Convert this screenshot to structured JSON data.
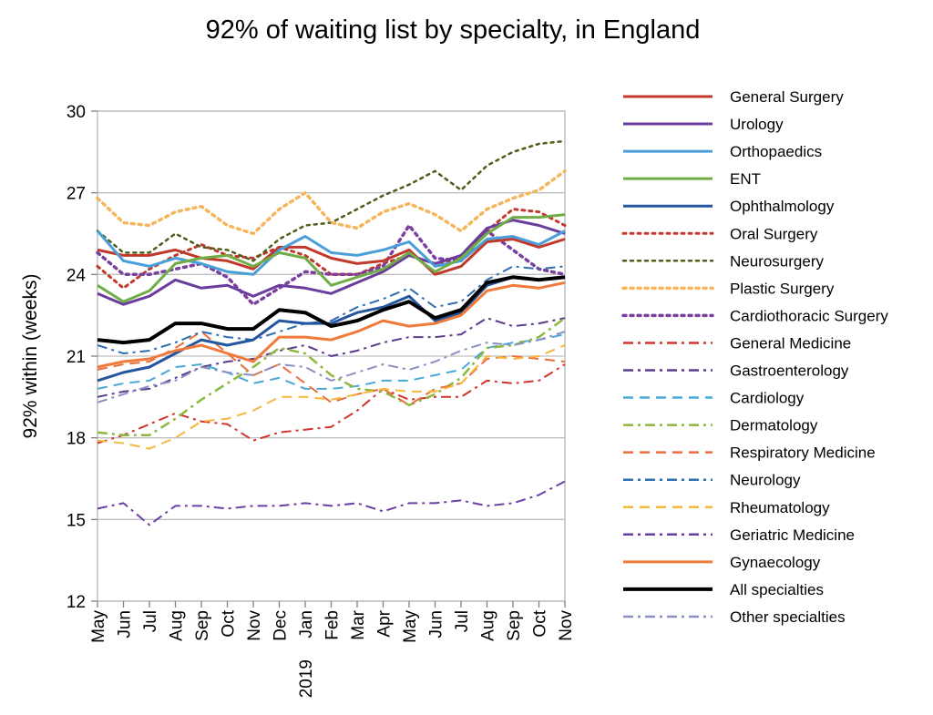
{
  "chart_data": {
    "type": "line",
    "title": "92% of waiting list by specialty, in England",
    "ylabel": "92% within (weeks)",
    "xlabel": "",
    "ylim": [
      12,
      30
    ],
    "yticks": [
      12,
      15,
      18,
      21,
      24,
      27,
      30
    ],
    "categories": [
      "May",
      "Jun",
      "Jul",
      "Aug",
      "Sep",
      "Oct",
      "Nov",
      "Dec",
      "Jan",
      "Feb",
      "Mar",
      "Apr",
      "May",
      "Jun",
      "Jul",
      "Aug",
      "Sep",
      "Oct",
      "Nov"
    ],
    "year_marker": {
      "index": 8,
      "label": "2019"
    },
    "grid": "horizontal",
    "legend_position": "right",
    "series": [
      {
        "name": "General Surgery",
        "color": "#C0392B",
        "dash": "solid",
        "width": 3,
        "values": [
          24.9,
          24.7,
          24.7,
          24.9,
          24.6,
          24.5,
          24.2,
          25.0,
          25.0,
          24.6,
          24.4,
          24.5,
          24.9,
          24.0,
          24.3,
          25.2,
          25.3,
          25.0,
          25.3
        ]
      },
      {
        "name": "Urology",
        "color": "#6A3C9C",
        "dash": "solid",
        "width": 3,
        "values": [
          23.3,
          22.9,
          23.2,
          23.8,
          23.5,
          23.6,
          23.2,
          23.6,
          23.5,
          23.3,
          23.7,
          24.1,
          24.7,
          24.4,
          24.7,
          25.7,
          26.0,
          25.8,
          25.5
        ]
      },
      {
        "name": "Orthopaedics",
        "color": "#4A9FD9",
        "dash": "solid",
        "width": 3,
        "values": [
          25.6,
          24.5,
          24.3,
          24.6,
          24.4,
          24.1,
          24.0,
          24.9,
          25.4,
          24.8,
          24.7,
          24.9,
          25.2,
          24.3,
          24.5,
          25.3,
          25.4,
          25.1,
          25.6
        ]
      },
      {
        "name": "ENT",
        "color": "#70AD47",
        "dash": "solid",
        "width": 3,
        "values": [
          23.6,
          23.0,
          23.4,
          24.4,
          24.6,
          24.7,
          24.3,
          24.8,
          24.6,
          23.6,
          23.9,
          24.2,
          24.8,
          24.1,
          24.6,
          25.5,
          26.1,
          26.1,
          26.2
        ]
      },
      {
        "name": "Ophthalmology",
        "color": "#23569E",
        "dash": "solid",
        "width": 3,
        "values": [
          20.1,
          20.4,
          20.6,
          21.1,
          21.6,
          21.4,
          21.6,
          22.3,
          22.2,
          22.2,
          22.6,
          22.8,
          23.2,
          22.3,
          22.6,
          23.6,
          23.9,
          23.8,
          23.9
        ]
      },
      {
        "name": "Oral Surgery",
        "color": "#C0392B",
        "dash": "dot",
        "width": 3,
        "values": [
          24.3,
          23.5,
          24.2,
          24.7,
          25.1,
          24.7,
          24.6,
          25.0,
          24.7,
          24.0,
          24.0,
          24.4,
          24.7,
          24.4,
          24.6,
          25.6,
          26.4,
          26.3,
          25.8
        ]
      },
      {
        "name": "Neurosurgery",
        "color": "#4C5F1A",
        "dash": "dot",
        "width": 2.5,
        "values": [
          25.6,
          24.8,
          24.8,
          25.5,
          25.0,
          24.9,
          24.5,
          25.3,
          25.8,
          25.9,
          26.4,
          26.9,
          27.3,
          27.8,
          27.1,
          28.0,
          28.5,
          28.8,
          28.9
        ]
      },
      {
        "name": "Plastic Surgery",
        "color": "#F4B55C",
        "dash": "dot",
        "width": 3.5,
        "values": [
          26.8,
          25.9,
          25.8,
          26.3,
          26.5,
          25.8,
          25.5,
          26.4,
          27.0,
          25.9,
          25.7,
          26.3,
          26.6,
          26.2,
          25.6,
          26.4,
          26.8,
          27.1,
          27.8
        ]
      },
      {
        "name": "Cardiothoracic Surgery",
        "color": "#7B3FA0",
        "dash": "dot",
        "width": 3.5,
        "values": [
          24.8,
          24.0,
          24.0,
          24.2,
          24.4,
          23.9,
          22.9,
          23.5,
          24.1,
          24.0,
          24.0,
          24.3,
          25.8,
          24.6,
          24.5,
          25.6,
          24.9,
          24.2,
          24.0
        ]
      },
      {
        "name": "General Medicine",
        "color": "#D0342C",
        "dash": "dashdot",
        "width": 2,
        "values": [
          17.8,
          18.1,
          18.5,
          18.9,
          18.6,
          18.5,
          17.9,
          18.2,
          18.3,
          18.4,
          19.0,
          19.8,
          19.4,
          19.5,
          19.5,
          20.1,
          20.0,
          20.1,
          20.7
        ]
      },
      {
        "name": "Gastroenterology",
        "color": "#5B3B8C",
        "dash": "dashdot",
        "width": 2,
        "values": [
          19.5,
          19.7,
          19.8,
          20.2,
          20.6,
          20.8,
          20.9,
          21.2,
          21.4,
          21.0,
          21.2,
          21.5,
          21.7,
          21.7,
          21.8,
          22.4,
          22.1,
          22.2,
          22.4
        ]
      },
      {
        "name": "Cardiology",
        "color": "#4AA8D8",
        "dash": "dash",
        "width": 2,
        "values": [
          19.8,
          20.0,
          20.1,
          20.6,
          20.7,
          20.4,
          20.0,
          20.2,
          19.8,
          19.8,
          19.9,
          20.1,
          20.1,
          20.3,
          20.5,
          21.3,
          21.5,
          21.6,
          21.8
        ]
      },
      {
        "name": "Dermatology",
        "color": "#8DB83E",
        "dash": "dashdot",
        "width": 2.5,
        "values": [
          18.2,
          18.1,
          18.1,
          18.7,
          19.4,
          20.0,
          20.6,
          21.3,
          21.1,
          20.3,
          19.8,
          19.7,
          19.2,
          19.6,
          20.2,
          21.3,
          21.4,
          21.7,
          22.4
        ]
      },
      {
        "name": "Respiratory Medicine",
        "color": "#E8703A",
        "dash": "dash",
        "width": 2,
        "values": [
          20.5,
          20.7,
          20.8,
          21.3,
          21.9,
          21.1,
          20.3,
          20.7,
          20.0,
          19.3,
          19.6,
          19.8,
          19.2,
          19.8,
          20.0,
          20.9,
          21.0,
          20.9,
          20.8
        ]
      },
      {
        "name": "Neurology",
        "color": "#2E6DB0",
        "dash": "dashdot",
        "width": 2,
        "values": [
          21.4,
          21.1,
          21.2,
          21.5,
          21.9,
          21.7,
          21.6,
          21.9,
          22.2,
          22.3,
          22.8,
          23.1,
          23.5,
          22.8,
          23.0,
          23.8,
          24.3,
          24.2,
          24.3
        ]
      },
      {
        "name": "Rheumatology",
        "color": "#F6B73C",
        "dash": "dash",
        "width": 2,
        "values": [
          17.9,
          17.8,
          17.6,
          18.0,
          18.6,
          18.7,
          19.0,
          19.5,
          19.5,
          19.4,
          19.6,
          19.8,
          19.7,
          19.7,
          20.0,
          21.0,
          20.9,
          21.0,
          21.4
        ]
      },
      {
        "name": "Geriatric Medicine",
        "color": "#6B3FA8",
        "dash": "dashdot",
        "width": 2,
        "values": [
          15.4,
          15.6,
          14.8,
          15.5,
          15.5,
          15.4,
          15.5,
          15.5,
          15.6,
          15.5,
          15.6,
          15.3,
          15.6,
          15.6,
          15.7,
          15.5,
          15.6,
          15.9,
          16.4
        ]
      },
      {
        "name": "Gynaecology",
        "color": "#F07A3B",
        "dash": "solid",
        "width": 3,
        "values": [
          20.6,
          20.8,
          20.9,
          21.2,
          21.4,
          21.1,
          20.8,
          21.7,
          21.7,
          21.6,
          21.9,
          22.3,
          22.1,
          22.2,
          22.5,
          23.4,
          23.6,
          23.5,
          23.7
        ]
      },
      {
        "name": "All specialties",
        "color": "#000000",
        "dash": "solid",
        "width": 4,
        "values": [
          21.6,
          21.5,
          21.6,
          22.2,
          22.2,
          22.0,
          22.0,
          22.7,
          22.6,
          22.1,
          22.3,
          22.7,
          23.0,
          22.4,
          22.7,
          23.7,
          23.9,
          23.8,
          23.9
        ]
      },
      {
        "name": "Other specialties",
        "color": "#8A8FC2",
        "dash": "dashdot",
        "width": 2,
        "values": [
          19.3,
          19.6,
          19.9,
          20.1,
          20.6,
          20.4,
          20.3,
          20.7,
          20.6,
          20.1,
          20.4,
          20.7,
          20.5,
          20.8,
          21.2,
          21.5,
          21.4,
          21.6,
          21.9
        ]
      }
    ]
  }
}
